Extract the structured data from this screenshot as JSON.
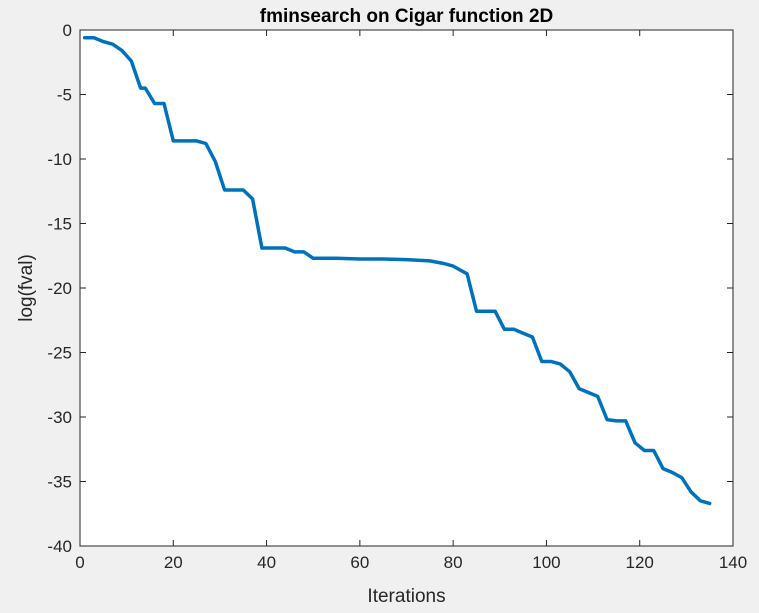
{
  "chart_data": {
    "type": "line",
    "title": "fminsearch on Cigar function 2D",
    "xlabel": "Iterations",
    "ylabel": "log(fval)",
    "xlim": [
      0,
      140
    ],
    "ylim": [
      -40,
      0
    ],
    "xticks": [
      0,
      20,
      40,
      60,
      80,
      100,
      120,
      140
    ],
    "yticks": [
      0,
      -5,
      -10,
      -15,
      -20,
      -25,
      -30,
      -35,
      -40
    ],
    "grid": false,
    "legend": "none",
    "colors": {
      "line": "#0072bd",
      "axes": "#262626",
      "plot_background": "#ffffff",
      "figure_background": "#f0f0f0"
    },
    "series": [
      {
        "x": [
          1,
          3,
          5,
          7,
          9,
          11,
          13,
          14,
          16,
          18,
          20,
          22,
          25,
          27,
          29,
          31,
          33,
          35,
          37,
          39,
          41,
          44,
          46,
          48,
          50,
          55,
          60,
          65,
          70,
          75,
          78,
          80,
          83,
          85,
          87,
          89,
          91,
          93,
          95,
          97,
          99,
          101,
          103,
          105,
          107,
          109,
          111,
          113,
          115,
          117,
          119,
          121,
          123,
          125,
          127,
          129,
          131,
          133,
          135
        ],
        "y": [
          -0.6,
          -0.6,
          -0.9,
          -1.1,
          -1.6,
          -2.4,
          -4.5,
          -4.5,
          -5.7,
          -5.7,
          -8.6,
          -8.6,
          -8.6,
          -8.8,
          -10.2,
          -12.4,
          -12.4,
          -12.4,
          -13.1,
          -16.9,
          -16.9,
          -16.9,
          -17.2,
          -17.2,
          -17.7,
          -17.7,
          -17.75,
          -17.75,
          -17.8,
          -17.9,
          -18.1,
          -18.3,
          -18.9,
          -21.8,
          -21.8,
          -21.8,
          -23.2,
          -23.2,
          -23.5,
          -23.8,
          -25.7,
          -25.7,
          -25.9,
          -26.5,
          -27.8,
          -28.1,
          -28.4,
          -30.2,
          -30.3,
          -30.3,
          -32.0,
          -32.6,
          -32.6,
          -34.0,
          -34.3,
          -34.7,
          -35.8,
          -36.5,
          -36.7
        ]
      }
    ]
  }
}
